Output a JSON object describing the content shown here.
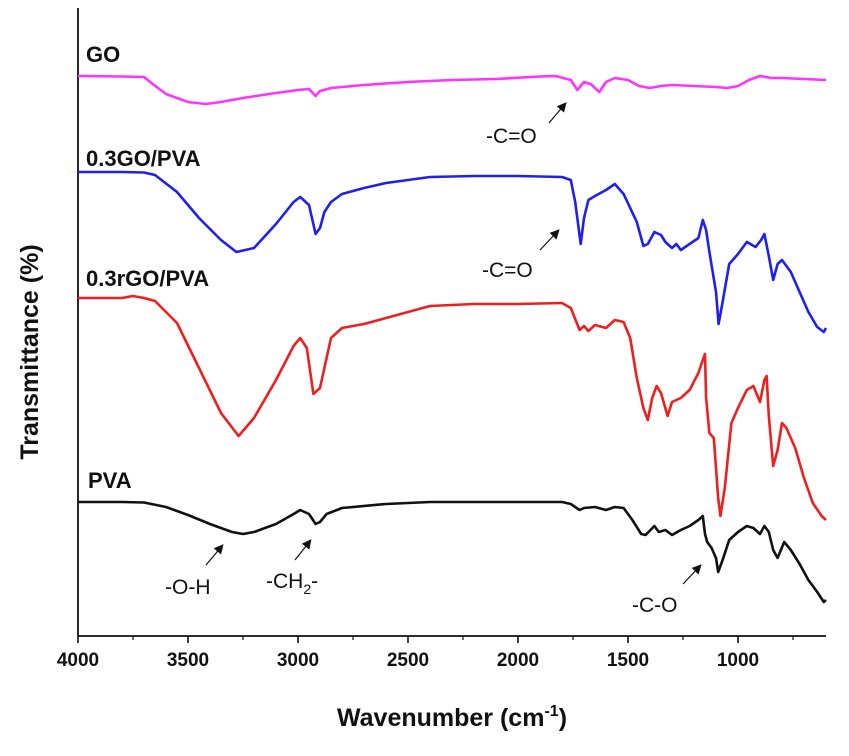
{
  "chart_data": {
    "type": "line",
    "xlabel": "Wavenumber (cm",
    "xlabel_sup": "-1",
    "xlabel_end": ")",
    "ylabel": "Transmittance (%)",
    "xlim": [
      4000,
      600
    ],
    "x_reversed": true,
    "x_ticks": [
      4000,
      3500,
      3000,
      2500,
      2000,
      1500,
      1000
    ],
    "x_tick_labels": [
      "4000",
      "3500",
      "3000",
      "2500",
      "2000",
      "1500",
      "1000"
    ],
    "y_ticks_shown": false,
    "grid": false,
    "series": [
      {
        "name": "GO",
        "color": "#ff33ff",
        "points": [
          [
            4000,
            0.0
          ],
          [
            3800,
            0.5
          ],
          [
            3700,
            1.0
          ],
          [
            3660,
            8
          ],
          [
            3600,
            18
          ],
          [
            3500,
            26
          ],
          [
            3420,
            28
          ],
          [
            3350,
            26
          ],
          [
            3250,
            22
          ],
          [
            3100,
            17
          ],
          [
            3000,
            14
          ],
          [
            2950,
            13
          ],
          [
            2920,
            20
          ],
          [
            2900,
            15
          ],
          [
            2850,
            12
          ],
          [
            2700,
            9
          ],
          [
            2500,
            6
          ],
          [
            2300,
            4
          ],
          [
            2100,
            3
          ],
          [
            1900,
            0.5
          ],
          [
            1830,
            0
          ],
          [
            1760,
            4
          ],
          [
            1730,
            14
          ],
          [
            1700,
            6
          ],
          [
            1670,
            8
          ],
          [
            1630,
            16
          ],
          [
            1600,
            6
          ],
          [
            1560,
            2
          ],
          [
            1500,
            4
          ],
          [
            1450,
            10
          ],
          [
            1400,
            12
          ],
          [
            1350,
            10
          ],
          [
            1300,
            9
          ],
          [
            1200,
            10
          ],
          [
            1100,
            11
          ],
          [
            1050,
            12
          ],
          [
            1000,
            10
          ],
          [
            950,
            4
          ],
          [
            900,
            0
          ],
          [
            850,
            2
          ],
          [
            800,
            2
          ],
          [
            700,
            3
          ],
          [
            600,
            4
          ]
        ]
      },
      {
        "name": "0.3GO/PVA",
        "color": "#1f1fee",
        "points": [
          [
            4000,
            0
          ],
          [
            3800,
            0
          ],
          [
            3700,
            0.5
          ],
          [
            3650,
            3
          ],
          [
            3550,
            20
          ],
          [
            3450,
            46
          ],
          [
            3350,
            68
          ],
          [
            3280,
            80
          ],
          [
            3200,
            76
          ],
          [
            3100,
            52
          ],
          [
            3020,
            30
          ],
          [
            2990,
            25
          ],
          [
            2950,
            33
          ],
          [
            2920,
            62
          ],
          [
            2900,
            56
          ],
          [
            2880,
            40
          ],
          [
            2850,
            30
          ],
          [
            2800,
            22
          ],
          [
            2700,
            16
          ],
          [
            2600,
            11
          ],
          [
            2400,
            5
          ],
          [
            2200,
            4
          ],
          [
            2000,
            4
          ],
          [
            1800,
            5
          ],
          [
            1760,
            8
          ],
          [
            1740,
            30
          ],
          [
            1715,
            72
          ],
          [
            1700,
            46
          ],
          [
            1680,
            28
          ],
          [
            1650,
            24
          ],
          [
            1600,
            18
          ],
          [
            1560,
            12
          ],
          [
            1520,
            22
          ],
          [
            1460,
            50
          ],
          [
            1430,
            74
          ],
          [
            1410,
            72
          ],
          [
            1380,
            60
          ],
          [
            1350,
            63
          ],
          [
            1330,
            70
          ],
          [
            1300,
            76
          ],
          [
            1280,
            72
          ],
          [
            1260,
            78
          ],
          [
            1220,
            72
          ],
          [
            1180,
            66
          ],
          [
            1160,
            48
          ],
          [
            1145,
            58
          ],
          [
            1130,
            80
          ],
          [
            1100,
            120
          ],
          [
            1088,
            152
          ],
          [
            1070,
            130
          ],
          [
            1040,
            92
          ],
          [
            1000,
            82
          ],
          [
            960,
            70
          ],
          [
            920,
            75
          ],
          [
            895,
            68
          ],
          [
            880,
            62
          ],
          [
            860,
            84
          ],
          [
            840,
            108
          ],
          [
            820,
            92
          ],
          [
            800,
            88
          ],
          [
            760,
            100
          ],
          [
            720,
            120
          ],
          [
            680,
            140
          ],
          [
            640,
            155
          ],
          [
            610,
            160
          ],
          [
            600,
            156
          ]
        ]
      },
      {
        "name": "0.3rGO/PVA",
        "color": "#ee1f1f",
        "points": [
          [
            4000,
            0
          ],
          [
            3900,
            0
          ],
          [
            3800,
            0
          ],
          [
            3750,
            -2
          ],
          [
            3700,
            0
          ],
          [
            3650,
            3
          ],
          [
            3550,
            25
          ],
          [
            3450,
            70
          ],
          [
            3350,
            115
          ],
          [
            3270,
            138
          ],
          [
            3200,
            120
          ],
          [
            3100,
            82
          ],
          [
            3020,
            48
          ],
          [
            2990,
            40
          ],
          [
            2960,
            50
          ],
          [
            2930,
            96
          ],
          [
            2900,
            90
          ],
          [
            2880,
            70
          ],
          [
            2850,
            40
          ],
          [
            2800,
            30
          ],
          [
            2700,
            26
          ],
          [
            2600,
            20
          ],
          [
            2400,
            8
          ],
          [
            2200,
            6
          ],
          [
            2000,
            6
          ],
          [
            1800,
            5
          ],
          [
            1760,
            10
          ],
          [
            1720,
            32
          ],
          [
            1700,
            28
          ],
          [
            1680,
            33
          ],
          [
            1650,
            27
          ],
          [
            1600,
            30
          ],
          [
            1560,
            22
          ],
          [
            1520,
            24
          ],
          [
            1490,
            40
          ],
          [
            1460,
            80
          ],
          [
            1430,
            110
          ],
          [
            1410,
            122
          ],
          [
            1390,
            100
          ],
          [
            1370,
            88
          ],
          [
            1350,
            95
          ],
          [
            1320,
            118
          ],
          [
            1300,
            104
          ],
          [
            1260,
            100
          ],
          [
            1220,
            92
          ],
          [
            1180,
            75
          ],
          [
            1160,
            62
          ],
          [
            1150,
            56
          ],
          [
            1145,
            100
          ],
          [
            1130,
            135
          ],
          [
            1110,
            140
          ],
          [
            1090,
            200
          ],
          [
            1080,
            218
          ],
          [
            1060,
            190
          ],
          [
            1030,
            125
          ],
          [
            1000,
            110
          ],
          [
            960,
            92
          ],
          [
            930,
            88
          ],
          [
            900,
            104
          ],
          [
            880,
            82
          ],
          [
            870,
            78
          ],
          [
            860,
            118
          ],
          [
            840,
            168
          ],
          [
            820,
            152
          ],
          [
            800,
            125
          ],
          [
            780,
            130
          ],
          [
            740,
            150
          ],
          [
            700,
            180
          ],
          [
            660,
            205
          ],
          [
            620,
            218
          ],
          [
            600,
            222
          ]
        ]
      },
      {
        "name": "PVA",
        "color": "#111111",
        "points": [
          [
            4000,
            0
          ],
          [
            3800,
            0
          ],
          [
            3700,
            0.5
          ],
          [
            3600,
            5
          ],
          [
            3500,
            13
          ],
          [
            3400,
            22
          ],
          [
            3300,
            30
          ],
          [
            3250,
            32
          ],
          [
            3200,
            30
          ],
          [
            3100,
            22
          ],
          [
            3020,
            12
          ],
          [
            2990,
            8
          ],
          [
            2950,
            12
          ],
          [
            2920,
            22
          ],
          [
            2900,
            20
          ],
          [
            2870,
            12
          ],
          [
            2800,
            6
          ],
          [
            2600,
            2
          ],
          [
            2400,
            0
          ],
          [
            2200,
            0
          ],
          [
            2000,
            0
          ],
          [
            1800,
            0
          ],
          [
            1760,
            2
          ],
          [
            1720,
            8
          ],
          [
            1700,
            6
          ],
          [
            1650,
            5
          ],
          [
            1600,
            8
          ],
          [
            1560,
            5
          ],
          [
            1520,
            6
          ],
          [
            1480,
            18
          ],
          [
            1440,
            32
          ],
          [
            1420,
            33
          ],
          [
            1380,
            24
          ],
          [
            1360,
            30
          ],
          [
            1330,
            28
          ],
          [
            1300,
            33
          ],
          [
            1260,
            28
          ],
          [
            1220,
            24
          ],
          [
            1180,
            18
          ],
          [
            1160,
            14
          ],
          [
            1150,
            32
          ],
          [
            1140,
            40
          ],
          [
            1120,
            46
          ],
          [
            1100,
            56
          ],
          [
            1090,
            70
          ],
          [
            1070,
            58
          ],
          [
            1040,
            38
          ],
          [
            1000,
            30
          ],
          [
            960,
            24
          ],
          [
            930,
            26
          ],
          [
            900,
            32
          ],
          [
            880,
            24
          ],
          [
            860,
            30
          ],
          [
            840,
            48
          ],
          [
            820,
            56
          ],
          [
            790,
            40
          ],
          [
            760,
            48
          ],
          [
            720,
            62
          ],
          [
            680,
            78
          ],
          [
            640,
            90
          ],
          [
            610,
            100
          ],
          [
            600,
            98
          ]
        ]
      }
    ],
    "series_labels": [
      "GO",
      "0.3GO/PVA",
      "0.3rGO/PVA",
      "PVA"
    ],
    "annotations": {
      "go_co": "-C=O",
      "gopva_co": "-C=O",
      "oh": "-O-H",
      "ch2_main": "-CH",
      "ch2_sub": "2",
      "ch2_end": "-",
      "c_o": "-C-O"
    }
  }
}
